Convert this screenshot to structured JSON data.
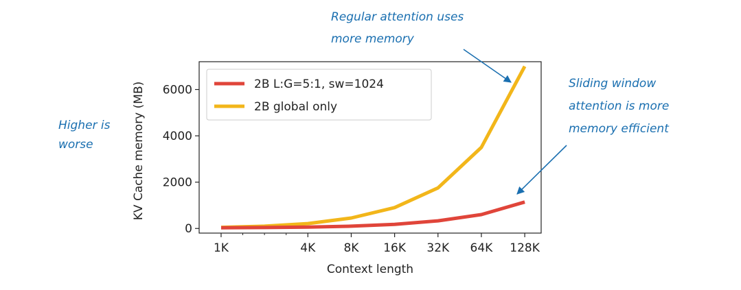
{
  "chart_data": {
    "type": "line",
    "title": "",
    "xlabel": "Context length",
    "ylabel": "KV Cache memory (MB)",
    "x_scale": "log2",
    "x": [
      1024,
      2048,
      4096,
      8192,
      16384,
      32768,
      65536,
      131072
    ],
    "xticks": [
      1024,
      4096,
      8192,
      16384,
      32768,
      65536,
      131072
    ],
    "xticklabels": [
      "1K",
      "4K",
      "8K",
      "16K",
      "32K",
      "64K",
      "128K"
    ],
    "yticks": [
      0,
      2000,
      4000,
      6000
    ],
    "yticklabels": [
      "0",
      "2000",
      "4000",
      "6000"
    ],
    "ylim": [
      -200,
      7200
    ],
    "grid": false,
    "legend_position": "upper-left",
    "series": [
      {
        "name": "2B L:G=5:1, sw=1024",
        "color": "#e0453a",
        "values": [
          30,
          40,
          60,
          100,
          180,
          330,
          600,
          1140
        ]
      },
      {
        "name": "2B global only",
        "color": "#f2b61a",
        "values": [
          50,
          100,
          210,
          450,
          900,
          1750,
          3500,
          7000
        ]
      }
    ],
    "annotations": [
      {
        "name": "higher-worse",
        "lines": [
          "Higher is",
          "worse"
        ]
      },
      {
        "name": "regular-attention",
        "lines": [
          "Regular attention uses",
          "more memory"
        ]
      },
      {
        "name": "sliding-window",
        "lines": [
          "Sliding window",
          "attention is more",
          "memory efficient"
        ]
      }
    ],
    "annotation_color": "#1a6fb0"
  }
}
